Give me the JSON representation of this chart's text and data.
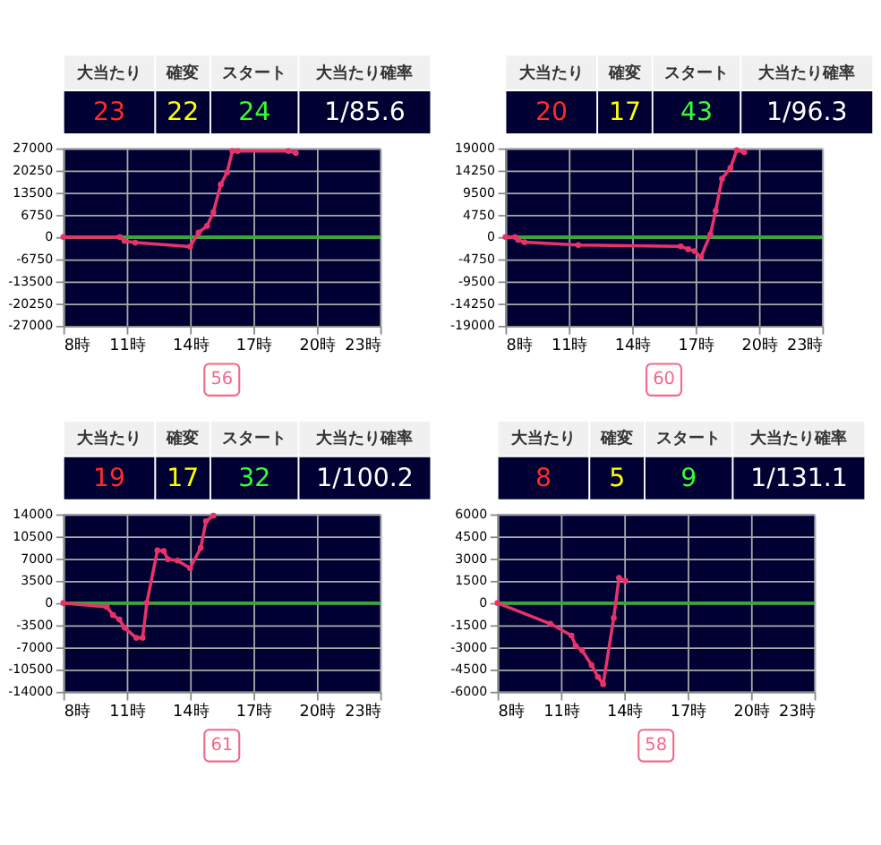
{
  "chart_data": [
    {
      "type": "other",
      "annotations": [
        "大当たり",
        "確変",
        "スタート",
        "大当たり確率"
      ],
      "categories": [
        "23",
        "22",
        "24",
        "1/85.6"
      ]
    },
    {
      "type": "line",
      "x": [
        8,
        10.66,
        10.9,
        11.4,
        14.0,
        14.4,
        14.8,
        15.1,
        15.45,
        15.75,
        16.0,
        16.25,
        18.65,
        19.0
      ],
      "series": [
        {
          "color": "#e8336a",
          "values": [
            0,
            0,
            -1200,
            -1700,
            -2900,
            1400,
            3400,
            7600,
            16000,
            19700,
            26200,
            26200,
            26200,
            25600
          ]
        }
      ],
      "xlim": [
        8,
        23
      ],
      "xticks": [
        {
          "value": 8,
          "label": "8時"
        },
        {
          "value": 11,
          "label": "11時"
        },
        {
          "value": 14,
          "label": "14時"
        },
        {
          "value": 17,
          "label": "17時"
        },
        {
          "value": 20,
          "label": "20時"
        },
        {
          "value": 23,
          "label": "23時"
        }
      ],
      "ylim": [
        -27000,
        27000
      ],
      "yticks": [
        -27000,
        -20250,
        -13500,
        -6750,
        0,
        6750,
        13500,
        20250,
        27000
      ],
      "ref_lines": [
        {
          "axis": "y",
          "value": 0,
          "color": "#33aa33"
        }
      ],
      "grid": true,
      "marker": "circle",
      "line_style": "solid",
      "annotations": [
        "56"
      ]
    },
    {
      "type": "other",
      "annotations": [
        "大当たり",
        "確変",
        "スタート",
        "大当たり確率"
      ],
      "categories": [
        "20",
        "17",
        "43",
        "1/96.3"
      ]
    },
    {
      "type": "line",
      "x": [
        8,
        8.45,
        8.6,
        8.9,
        11.45,
        16.3,
        16.65,
        16.95,
        17.25,
        17.7,
        17.95,
        18.25,
        18.65,
        18.95,
        19.3
      ],
      "series": [
        {
          "color": "#e8336a",
          "values": [
            0,
            0,
            -600,
            -1100,
            -1700,
            -2000,
            -2600,
            -3000,
            -4300,
            600,
            5600,
            12500,
            14800,
            18600,
            18200
          ]
        }
      ],
      "xlim": [
        8,
        23
      ],
      "xticks": [
        {
          "value": 8,
          "label": "8時"
        },
        {
          "value": 11,
          "label": "11時"
        },
        {
          "value": 14,
          "label": "14時"
        },
        {
          "value": 17,
          "label": "17時"
        },
        {
          "value": 20,
          "label": "20時"
        },
        {
          "value": 23,
          "label": "23時"
        }
      ],
      "ylim": [
        -19000,
        19000
      ],
      "yticks": [
        -19000,
        -14250,
        -9500,
        -4750,
        0,
        4750,
        9500,
        14250,
        19000
      ],
      "ref_lines": [
        {
          "axis": "y",
          "value": 0,
          "color": "#33aa33"
        }
      ],
      "grid": true,
      "marker": "circle",
      "line_style": "solid",
      "annotations": [
        "60"
      ]
    },
    {
      "type": "other",
      "annotations": [
        "大当たり",
        "確変",
        "スタート",
        "大当たり確率"
      ],
      "categories": [
        "19",
        "17",
        "32",
        "1/100.2"
      ]
    },
    {
      "type": "line",
      "x": [
        8,
        10.05,
        10.35,
        10.65,
        10.9,
        11.45,
        11.75,
        11.95,
        12.45,
        12.75,
        12.95,
        13.4,
        14.0,
        14.5,
        14.75,
        15.1
      ],
      "series": [
        {
          "color": "#e8336a",
          "values": [
            0,
            -600,
            -1900,
            -2600,
            -3900,
            -5500,
            -5500,
            0,
            8300,
            8200,
            6900,
            6700,
            5500,
            8700,
            12900,
            13800
          ]
        }
      ],
      "xlim": [
        8,
        23
      ],
      "xticks": [
        {
          "value": 8,
          "label": "8時"
        },
        {
          "value": 11,
          "label": "11時"
        },
        {
          "value": 14,
          "label": "14時"
        },
        {
          "value": 17,
          "label": "17時"
        },
        {
          "value": 20,
          "label": "20時"
        },
        {
          "value": 23,
          "label": "23時"
        }
      ],
      "ylim": [
        -14000,
        14000
      ],
      "yticks": [
        -14000,
        -10500,
        -7000,
        -3500,
        0,
        3500,
        7000,
        10500,
        14000
      ],
      "ref_lines": [
        {
          "axis": "y",
          "value": 0,
          "color": "#33aa33"
        }
      ],
      "grid": true,
      "marker": "circle",
      "line_style": "solid",
      "annotations": [
        "61"
      ]
    },
    {
      "type": "other",
      "annotations": [
        "大当たり",
        "確変",
        "スタート",
        "大当たり確率"
      ],
      "categories": [
        "8",
        "5",
        "9",
        "1/131.1"
      ]
    },
    {
      "type": "line",
      "x": [
        8,
        10.5,
        11.5,
        11.7,
        12.0,
        12.45,
        12.75,
        13.0,
        13.5,
        13.75,
        14.05
      ],
      "series": [
        {
          "color": "#e8336a",
          "values": [
            0,
            -1400,
            -2200,
            -2900,
            -3200,
            -4200,
            -5000,
            -5500,
            -1000,
            1700,
            1500
          ]
        }
      ],
      "xlim": [
        8,
        23
      ],
      "xticks": [
        {
          "value": 8,
          "label": "8時"
        },
        {
          "value": 11,
          "label": "11時"
        },
        {
          "value": 14,
          "label": "14時"
        },
        {
          "value": 17,
          "label": "17時"
        },
        {
          "value": 20,
          "label": "20時"
        },
        {
          "value": 23,
          "label": "23時"
        }
      ],
      "ylim": [
        -6000,
        6000
      ],
      "yticks": [
        -6000,
        -4500,
        -3000,
        -1500,
        0,
        1500,
        3000,
        4500,
        6000
      ],
      "ref_lines": [
        {
          "axis": "y",
          "value": 0,
          "color": "#33aa33"
        }
      ],
      "grid": true,
      "marker": "circle",
      "line_style": "solid",
      "annotations": [
        "58"
      ]
    }
  ]
}
